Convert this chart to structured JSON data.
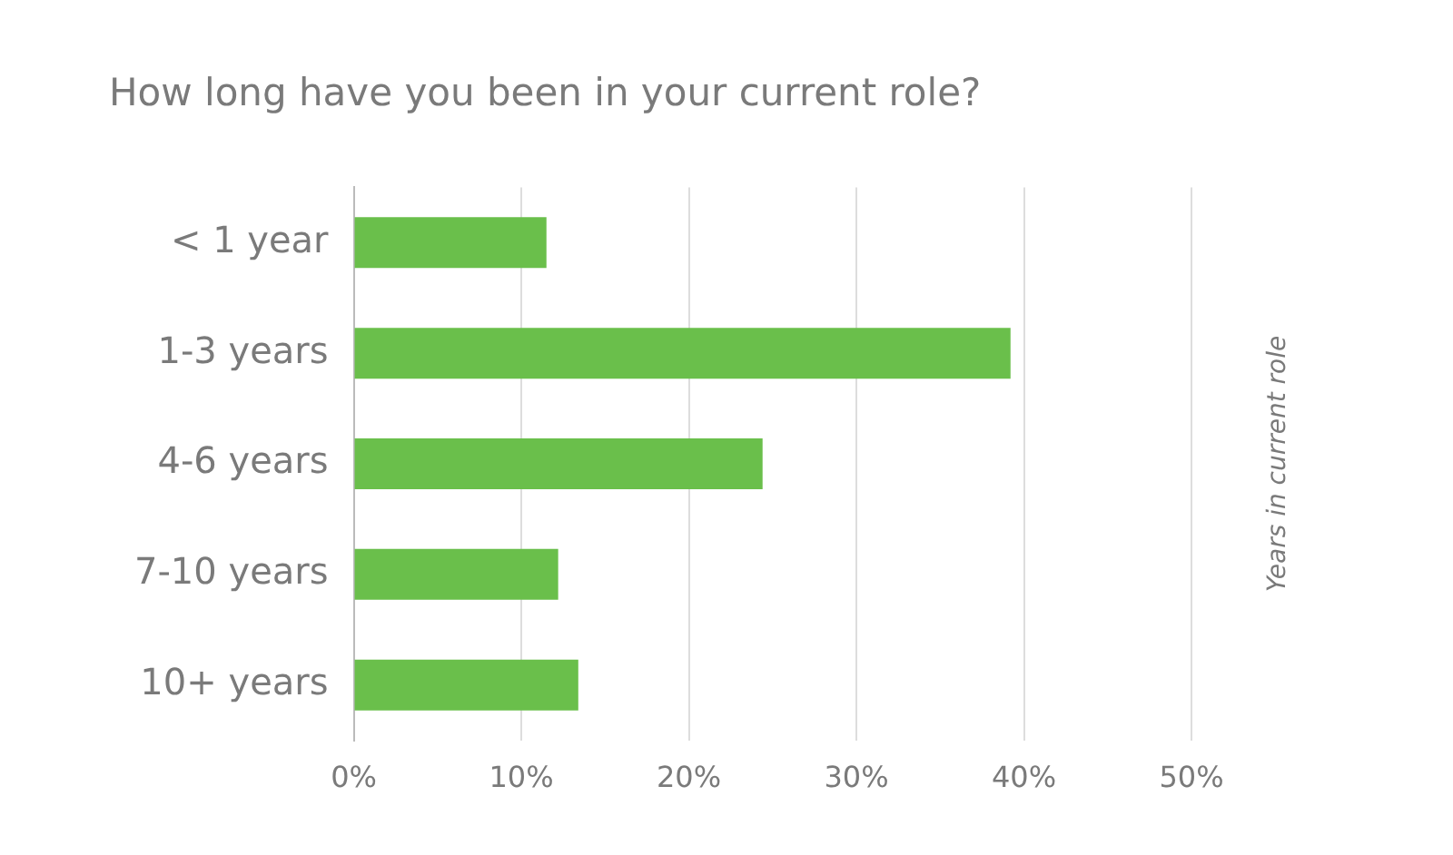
{
  "chart_data": {
    "type": "bar",
    "orientation": "horizontal",
    "title": "How long have you been in your current role?",
    "y2label": "Years in current role",
    "categories": [
      "< 1 year",
      "1-3 years",
      "4-6 years",
      "7-10 years",
      "10+ years"
    ],
    "values": [
      11.5,
      39.2,
      24.4,
      12.2,
      13.4
    ],
    "color": "#6abf4b",
    "xlim": [
      0,
      50
    ],
    "xticks": [
      {
        "value": 0,
        "label": "0%"
      },
      {
        "value": 10,
        "label": "10%"
      },
      {
        "value": 20,
        "label": "20%"
      },
      {
        "value": 30,
        "label": "30%"
      },
      {
        "value": 40,
        "label": "40%"
      },
      {
        "value": 50,
        "label": "50%"
      }
    ],
    "grid": "x",
    "legend": false
  }
}
